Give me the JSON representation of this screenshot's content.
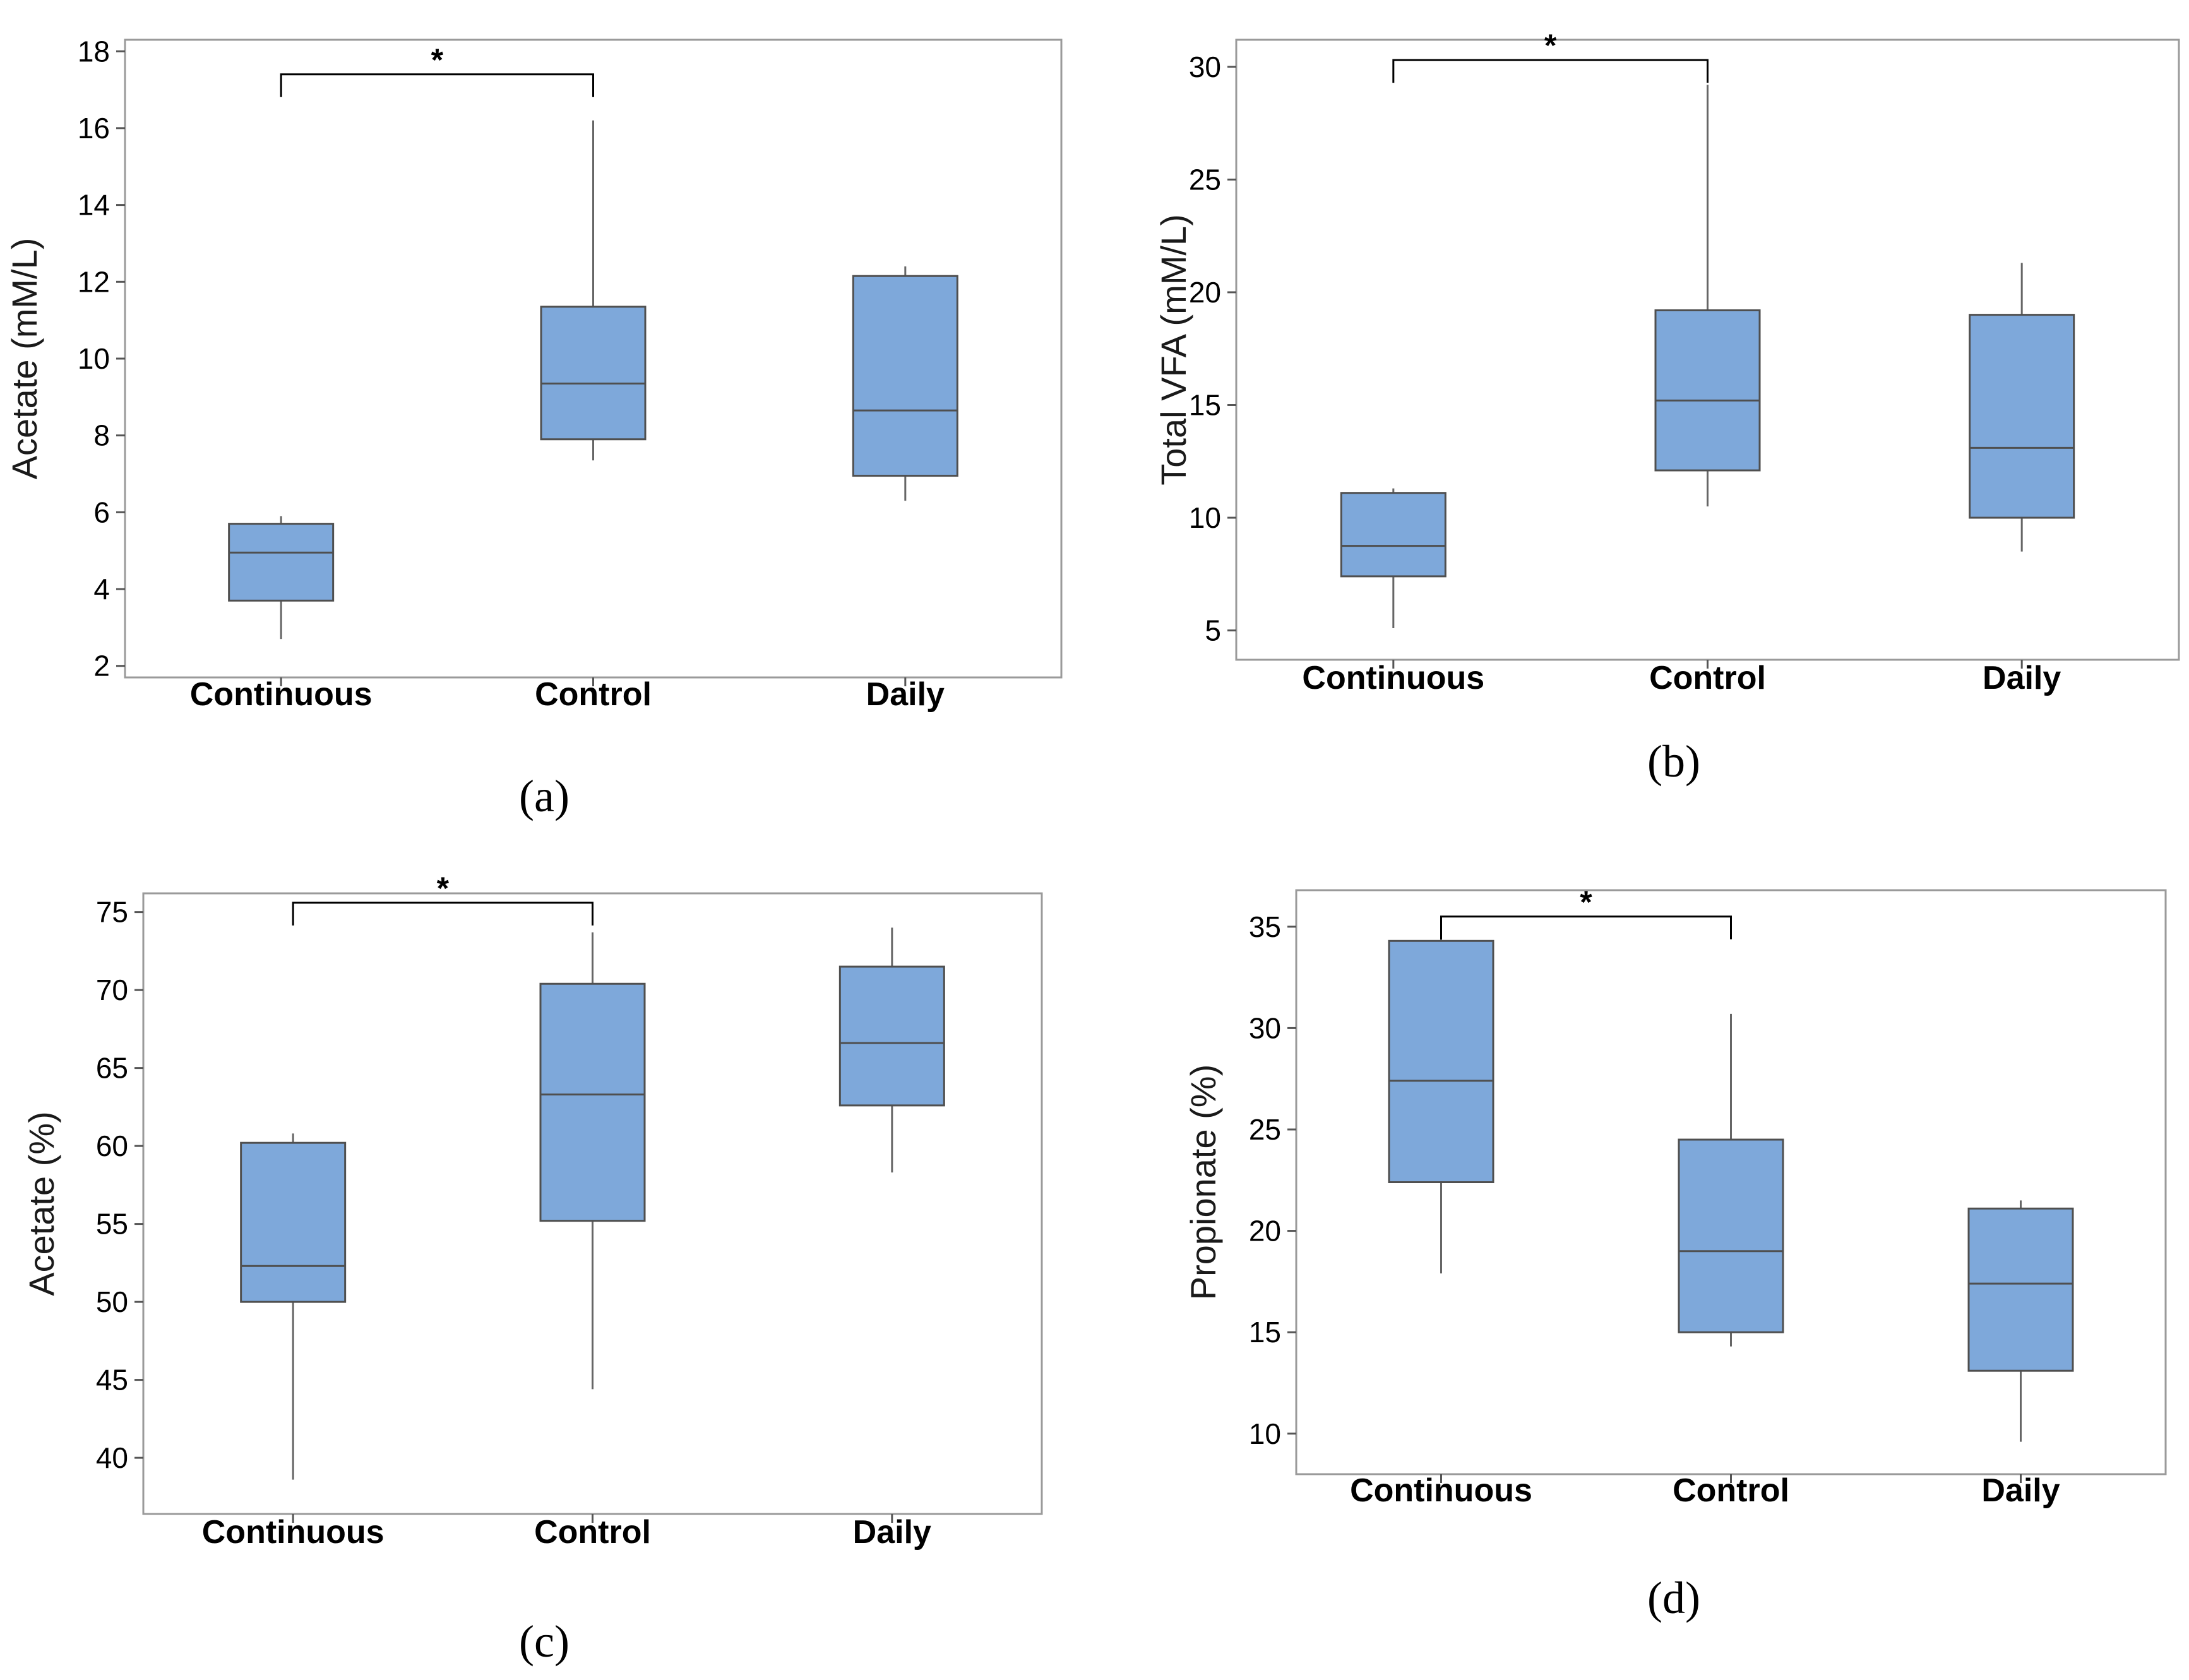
{
  "colors": {
    "box_fill": "#7EA8DA",
    "box_stroke": "#4f4f4f",
    "frame": "#9a9a9a"
  },
  "chart_data": [
    {
      "id": "a",
      "type": "box",
      "panel_label": "(a)",
      "title": "",
      "xlabel": "",
      "ylabel": "Acetate (mM/L)",
      "categories": [
        "Continuous",
        "Control",
        "Daily"
      ],
      "yticks": [
        2,
        4,
        6,
        8,
        10,
        12,
        14,
        16,
        18
      ],
      "ylim": [
        1.7,
        18.3
      ],
      "boxes": [
        {
          "min": 2.7,
          "q1": 3.7,
          "median": 4.95,
          "q3": 5.7,
          "max": 5.9
        },
        {
          "min": 7.35,
          "q1": 7.9,
          "median": 9.35,
          "q3": 11.35,
          "max": 16.2
        },
        {
          "min": 6.3,
          "q1": 6.95,
          "median": 8.65,
          "q3": 12.15,
          "max": 12.4
        }
      ],
      "significance": {
        "from": 0,
        "to": 1,
        "label": "*",
        "y": 17.4
      }
    },
    {
      "id": "b",
      "type": "box",
      "panel_label": "(b)",
      "title": "",
      "xlabel": "",
      "ylabel": "Total VFA (mM/L)",
      "categories": [
        "Continuous",
        "Control",
        "Daily"
      ],
      "yticks": [
        5,
        10,
        15,
        20,
        25,
        30
      ],
      "ylim": [
        3.7,
        31.2
      ],
      "boxes": [
        {
          "min": 5.1,
          "q1": 7.4,
          "median": 8.75,
          "q3": 11.1,
          "max": 11.3
        },
        {
          "min": 10.5,
          "q1": 12.1,
          "median": 15.2,
          "q3": 19.2,
          "max": 29.2
        },
        {
          "min": 8.5,
          "q1": 10.0,
          "median": 13.1,
          "q3": 19.0,
          "max": 21.3
        }
      ],
      "significance": {
        "from": 0,
        "to": 1,
        "label": "*",
        "y": 30.3
      }
    },
    {
      "id": "c",
      "type": "box",
      "panel_label": "(c)",
      "title": "",
      "xlabel": "",
      "ylabel": "Acetate (%)",
      "categories": [
        "Continuous",
        "Control",
        "Daily"
      ],
      "yticks": [
        40,
        45,
        50,
        55,
        60,
        65,
        70,
        75
      ],
      "ylim": [
        36.4,
        76.2
      ],
      "boxes": [
        {
          "min": 38.6,
          "q1": 50.0,
          "median": 52.3,
          "q3": 60.2,
          "max": 60.8
        },
        {
          "min": 44.4,
          "q1": 55.2,
          "median": 63.3,
          "q3": 70.4,
          "max": 73.7
        },
        {
          "min": 58.3,
          "q1": 62.6,
          "median": 66.6,
          "q3": 71.5,
          "max": 74.0
        }
      ],
      "significance": {
        "from": 0,
        "to": 1,
        "label": "*",
        "y": 75.6
      }
    },
    {
      "id": "d",
      "type": "box",
      "panel_label": "(d)",
      "title": "",
      "xlabel": "",
      "ylabel": "Propionate (%)",
      "categories": [
        "Continuous",
        "Control",
        "Daily"
      ],
      "yticks": [
        10,
        15,
        20,
        25,
        30,
        35
      ],
      "ylim": [
        8.0,
        36.8
      ],
      "boxes": [
        {
          "min": 17.9,
          "q1": 22.4,
          "median": 27.4,
          "q3": 34.3,
          "max": 35.1
        },
        {
          "min": 14.3,
          "q1": 15.0,
          "median": 19.0,
          "q3": 24.5,
          "max": 30.7
        },
        {
          "min": 9.6,
          "q1": 13.1,
          "median": 17.4,
          "q3": 21.1,
          "max": 21.5
        }
      ],
      "significance": {
        "from": 0,
        "to": 1,
        "label": "*",
        "y": 35.5
      }
    }
  ]
}
